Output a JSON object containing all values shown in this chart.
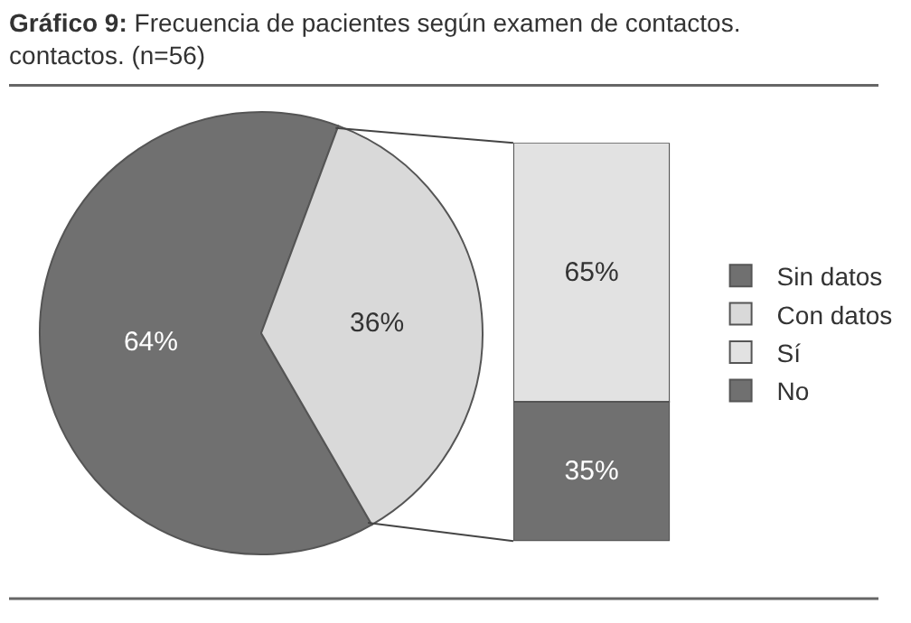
{
  "chart_data": [
    {
      "type": "pie",
      "title": "Gráfico 9: Frecuencia de pacientes según examen de contactos.",
      "subtitle": "contactos. (n=56)",
      "categories": [
        "Sin datos",
        "Con datos"
      ],
      "values": [
        64,
        36
      ],
      "colors": [
        "#707070",
        "#d9d9d9"
      ],
      "value_labels": [
        "64%",
        "36%"
      ],
      "legend": "right"
    },
    {
      "type": "bar",
      "stacked": true,
      "categories": [
        null
      ],
      "series": [
        {
          "name": "No",
          "color": "#707070",
          "values": [
            35
          ],
          "value_labels": [
            "35%"
          ]
        },
        {
          "name": "Sí",
          "color": "#e2e2e2",
          "values": [
            65
          ],
          "value_labels": [
            "65%"
          ]
        }
      ],
      "legend": "right"
    }
  ]
}
